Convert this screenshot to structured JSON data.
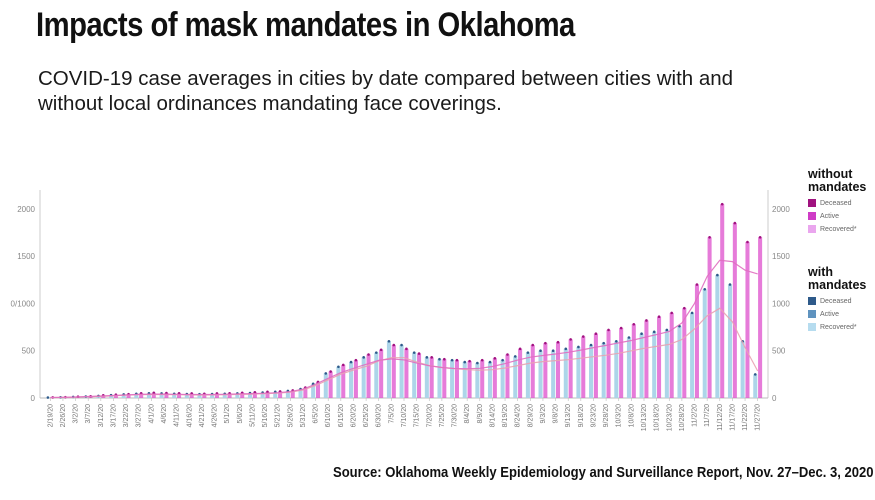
{
  "chart_data": {
    "type": "bar",
    "title": "Impacts of mask mandates in Oklahoma",
    "subtitle": "COVID-19 case averages in cities by date compared between cities with and without local ordinances mandating face coverings.",
    "source": "Source: Oklahoma Weekly Epidemiology and Surveillance Report, Nov. 27–Dec. 3, 2020",
    "ylim": [
      0,
      2200
    ],
    "y_ticks_left": [
      "2000",
      " 1500",
      "0/1000",
      "500",
      "0"
    ],
    "y_ticks_right": [
      "2000",
      "1500",
      "1000",
      "500",
      "0"
    ],
    "y_tick_values": [
      2000,
      1500,
      1000,
      500,
      0
    ],
    "x_ticks": [
      "2/19/20",
      "2/26/20",
      "3/2/20",
      "3/7/20",
      "3/12/20",
      "3/17/20",
      "3/22/20",
      "3/27/20",
      "4/1/20",
      "4/6/20",
      "4/11/20",
      "4/16/20",
      "4/21/20",
      "4/26/20",
      "5/1/20",
      "5/6/20",
      "5/11/20",
      "5/16/20",
      "5/21/20",
      "5/26/20",
      "5/31/20",
      "6/5/20",
      "6/10/20",
      "6/15/20",
      "6/20/20",
      "6/25/20",
      "6/30/20",
      "7/5/20",
      "7/10/20",
      "7/15/20",
      "7/20/20",
      "7/25/20",
      "7/30/20",
      "8/4/20",
      "8/9/20",
      "8/14/20",
      "8/19/20",
      "8/24/20",
      "8/29/20",
      "9/3/20",
      "9/8/20",
      "9/13/20",
      "9/18/20",
      "9/23/20",
      "9/28/20",
      "10/3/20",
      "10/8/20",
      "10/13/20",
      "10/18/20",
      "10/23/20",
      "10/28/20",
      "11/2/20",
      "11/7/20",
      "11/12/20",
      "11/17/20",
      "11/22/20",
      "11/27/20"
    ],
    "series": [
      {
        "name": "With mandates (Recovered* + Active)",
        "color": "#a9d3e8",
        "values": [
          5,
          8,
          12,
          15,
          22,
          30,
          38,
          45,
          50,
          48,
          45,
          42,
          40,
          42,
          45,
          48,
          52,
          58,
          65,
          75,
          95,
          150,
          260,
          330,
          380,
          430,
          480,
          600,
          560,
          480,
          430,
          410,
          400,
          380,
          370,
          380,
          400,
          440,
          480,
          500,
          500,
          520,
          540,
          560,
          580,
          600,
          640,
          680,
          700,
          720,
          760,
          900,
          1150,
          1300,
          1200,
          600,
          250
        ]
      },
      {
        "name": "Without mandates (Recovered* + Active)",
        "color": "#e05ad0",
        "values": [
          6,
          9,
          14,
          18,
          28,
          35,
          40,
          50,
          55,
          52,
          50,
          48,
          45,
          48,
          50,
          55,
          60,
          65,
          70,
          80,
          110,
          170,
          280,
          350,
          400,
          460,
          510,
          560,
          520,
          470,
          430,
          410,
          400,
          390,
          400,
          420,
          460,
          520,
          560,
          580,
          590,
          620,
          650,
          680,
          720,
          740,
          780,
          820,
          860,
          900,
          950,
          1200,
          1700,
          2050,
          1850,
          1650,
          1700
        ]
      }
    ],
    "legend": [
      {
        "group": "without\nmandates",
        "items": [
          {
            "label": "Deceased",
            "color": "#a0127f"
          },
          {
            "label": "Active",
            "color": "#cf3cc6"
          },
          {
            "label": "Recovered*",
            "color": "#eaa6ee"
          }
        ]
      },
      {
        "group": "with\nmandates",
        "items": [
          {
            "label": "Deceased",
            "color": "#2e5a8a"
          },
          {
            "label": "Active",
            "color": "#5f93bf"
          },
          {
            "label": "Recovered*",
            "color": "#b6dcef"
          }
        ]
      }
    ]
  }
}
